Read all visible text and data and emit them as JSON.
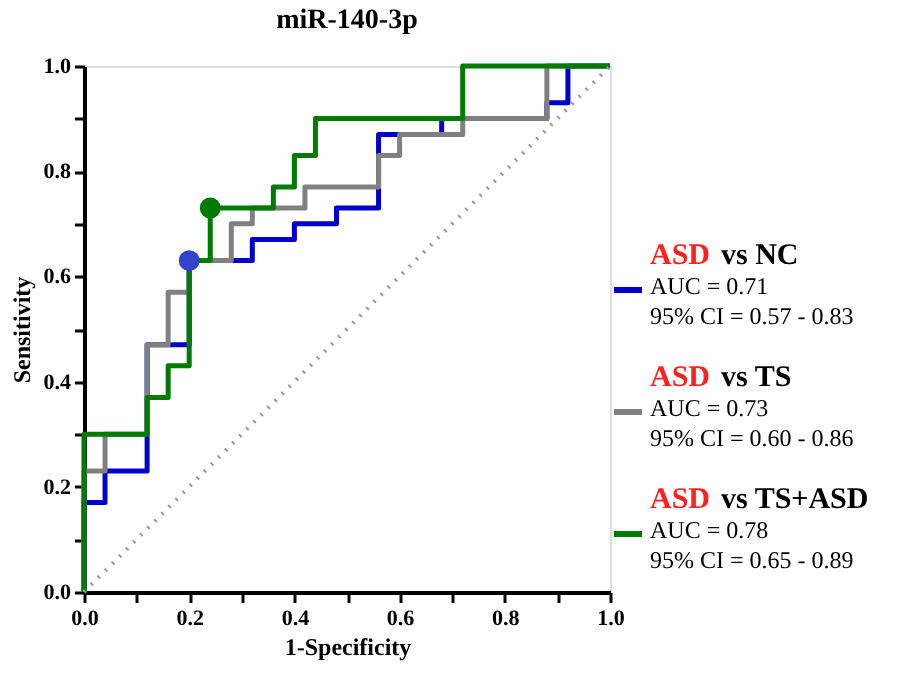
{
  "chart_data": {
    "type": "step",
    "title": "miR-140-3p",
    "xlabel": "1-Specificity",
    "ylabel": "Sensitivity",
    "xlim": [
      0,
      1
    ],
    "ylim": [
      0,
      1
    ],
    "xticks": [
      {
        "value": 0,
        "label": "0.0"
      },
      {
        "value": 0.1,
        "label": null
      },
      {
        "value": 0.2,
        "label": "0.2"
      },
      {
        "value": 0.3,
        "label": null
      },
      {
        "value": 0.4,
        "label": "0.4"
      },
      {
        "value": 0.5,
        "label": null
      },
      {
        "value": 0.6,
        "label": "0.6"
      },
      {
        "value": 0.7,
        "label": null
      },
      {
        "value": 0.8,
        "label": "0.8"
      },
      {
        "value": 0.9,
        "label": null
      },
      {
        "value": 1,
        "label": "1.0"
      }
    ],
    "yticks": [
      {
        "value": 0,
        "label": "0.0"
      },
      {
        "value": 0.1,
        "label": null
      },
      {
        "value": 0.2,
        "label": "0.2"
      },
      {
        "value": 0.3,
        "label": null
      },
      {
        "value": 0.4,
        "label": "0.4"
      },
      {
        "value": 0.5,
        "label": null
      },
      {
        "value": 0.6,
        "label": "0.6"
      },
      {
        "value": 0.7,
        "label": null
      },
      {
        "value": 0.8,
        "label": "0.8"
      },
      {
        "value": 0.9,
        "label": null
      },
      {
        "value": 1,
        "label": "1.0"
      }
    ],
    "grid": false,
    "legend": "right",
    "series": [
      {
        "name": "ASD vs NC",
        "color": "#0000cc",
        "x": [
          0,
          0,
          0.04,
          0.12,
          0.2,
          0.32,
          0.4,
          0.48,
          0.56,
          0.68,
          0.88,
          0.92,
          1.0
        ],
        "values": [
          0,
          0.17,
          0.23,
          0.47,
          0.63,
          0.67,
          0.7,
          0.73,
          0.87,
          0.9,
          0.93,
          1.0,
          1.0
        ]
      },
      {
        "name": "ASD vs TS",
        "color": "#808080",
        "x": [
          0,
          0,
          0.04,
          0.12,
          0.16,
          0.2,
          0.28,
          0.32,
          0.42,
          0.56,
          0.6,
          0.72,
          0.88,
          1.0
        ],
        "values": [
          0,
          0.23,
          0.3,
          0.47,
          0.57,
          0.63,
          0.7,
          0.73,
          0.77,
          0.83,
          0.87,
          0.9,
          1.0,
          1.0
        ]
      },
      {
        "name": "ASD vs TS+ASD",
        "color": "#007a00",
        "x": [
          0,
          0,
          0.12,
          0.16,
          0.2,
          0.24,
          0.36,
          0.4,
          0.44,
          0.72,
          1.0
        ],
        "values": [
          0,
          0.3,
          0.37,
          0.43,
          0.63,
          0.73,
          0.77,
          0.83,
          0.9,
          1.0,
          1.0
        ]
      },
      {
        "type": "line",
        "line_style": "dotted",
        "color": "#999999",
        "x": [
          0,
          1
        ],
        "values": [
          0,
          1
        ]
      },
      {
        "type": "scatter",
        "marker": "circle",
        "color": "#3344cc",
        "x": [
          0.2
        ],
        "values": [
          0.63
        ]
      },
      {
        "type": "scatter",
        "marker": "circle",
        "color": "#007a00",
        "x": [
          0.24
        ],
        "values": [
          0.73
        ]
      }
    ],
    "annotations": [
      "AUC = 0.71",
      "95% CI = 0.57 - 0.83",
      "AUC = 0.73",
      "95% CI = 0.60 - 0.86",
      "AUC = 0.78",
      "95% CI = 0.65 - 0.89"
    ]
  }
}
